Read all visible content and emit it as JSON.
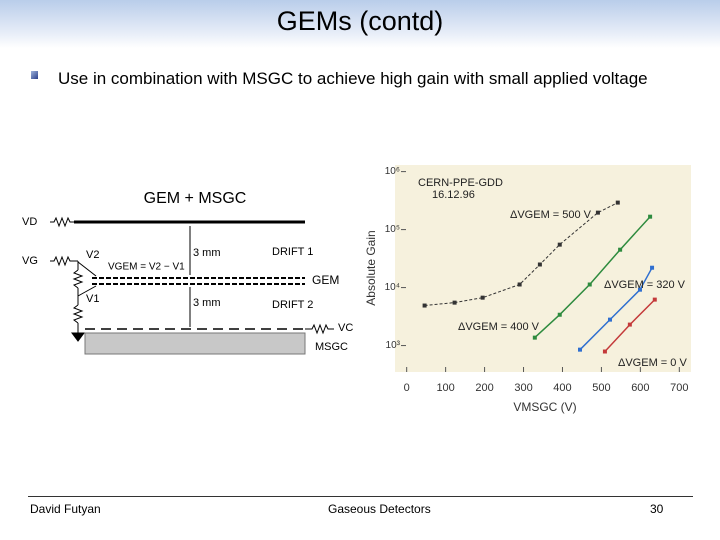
{
  "header": {
    "title": "GEMs (contd)"
  },
  "bullets": [
    "Use in combination with MSGC to achieve high gain with small applied voltage"
  ],
  "diagram": {
    "title": "GEM + MSGC",
    "labels": {
      "vd": "VD",
      "vg": "VG",
      "v2": "V2",
      "v1": "V1",
      "vgem": "VGEM = V2 − V1",
      "gap1": "3 mm",
      "drift1": "DRIFT 1",
      "gem": "GEM",
      "gap2": "3 mm",
      "drift2": "DRIFT 2",
      "vc": "VC",
      "msgc": "MSGC"
    }
  },
  "chart_data": {
    "type": "scatter",
    "annotations": [
      "CERN-PPE-GDD",
      "16.12.96"
    ],
    "x_label": "VMSGC (V)",
    "y_label": "Absolute Gain",
    "log_y": true,
    "xlim": [
      -30,
      730
    ],
    "xticks": [
      0,
      100,
      200,
      300,
      400,
      500,
      600,
      700
    ],
    "ylim": [
      350,
      1300000
    ],
    "yticks": [
      {
        "value": 1000,
        "label": "10³"
      },
      {
        "value": 10000,
        "label": "10⁴"
      },
      {
        "value": 100000,
        "label": "10⁵"
      },
      {
        "value": 1000000,
        "label": "10⁶"
      }
    ],
    "background": "#f6f1dd",
    "series": [
      {
        "name": "ΔVGEM = 500 V",
        "color": "#333333",
        "dashed": true,
        "x": [
          46,
          123,
          195,
          290,
          342,
          393,
          491,
          542
        ],
        "values": [
          4900,
          5500,
          6700,
          11300,
          25000,
          55000,
          196000,
          292000
        ]
      },
      {
        "name": "ΔVGEM = 400 V",
        "color": "#2e8b3e",
        "dashed": false,
        "x": [
          329,
          393,
          470,
          548,
          625
        ],
        "values": [
          1370,
          3400,
          11300,
          45000,
          167000
        ]
      },
      {
        "name": "ΔVGEM = 320 V",
        "color": "#2f6fd0",
        "dashed": false,
        "x": [
          445,
          522,
          599,
          630
        ],
        "values": [
          850,
          2800,
          9200,
          22000
        ]
      },
      {
        "name": "ΔVGEM = 0 V",
        "color": "#c43a3a",
        "dashed": false,
        "x": [
          509,
          573,
          637
        ],
        "values": [
          790,
          2300,
          6200
        ]
      }
    ]
  },
  "footer": {
    "author": "David Futyan",
    "topic": "Gaseous Detectors",
    "page": "30"
  }
}
